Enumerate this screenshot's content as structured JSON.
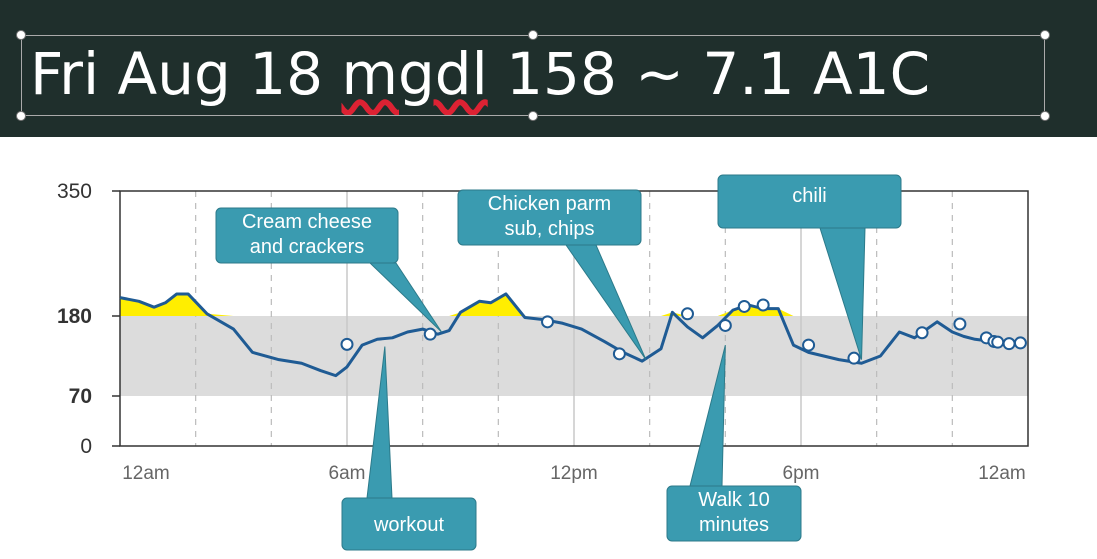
{
  "header": {
    "title_parts": [
      "Fri Aug 18 ",
      "mgdl",
      " 158 ~ 7.1 A1C"
    ]
  },
  "colors": {
    "header_bg": "#1f2f2c",
    "line": "#1f5b94",
    "high_fill": "#ffee00",
    "target_band": "#dcdcdc",
    "callout": "#3a9bb0"
  },
  "chart_data": {
    "type": "line",
    "y_ticks": [
      "350",
      "180",
      "70",
      "0"
    ],
    "x_ticks": [
      "12am",
      "6am",
      "12pm",
      "6pm",
      "12am"
    ],
    "ylim": [
      0,
      350
    ],
    "xlim": [
      0,
      24
    ],
    "target_range": [
      70,
      180
    ],
    "high_threshold": 180,
    "grid": "dashed vertical every 2 hours",
    "series": [
      {
        "x": [
          0,
          0.5,
          0.9,
          1.2,
          1.5,
          1.8,
          2.3,
          3.0,
          3.5,
          4.2,
          4.8,
          5.3,
          5.7,
          6.0,
          6.4,
          6.8,
          7.2,
          7.6,
          8.0,
          8.4,
          8.7,
          9.0,
          9.5,
          9.8,
          10.2,
          10.7,
          11.2,
          11.7,
          12.2,
          12.8,
          13.3,
          13.8,
          14.3,
          14.6,
          15.0,
          15.4,
          15.8,
          16.2,
          16.6,
          17.0,
          17.4,
          17.8,
          18.2,
          18.6,
          19.0,
          19.6,
          20.1,
          20.6,
          21.0,
          21.6,
          22.0,
          22.3,
          22.6,
          22.9
        ],
        "y": [
          205,
          200,
          192,
          198,
          210,
          210,
          183,
          162,
          130,
          120,
          115,
          105,
          98,
          110,
          140,
          148,
          150,
          158,
          162,
          155,
          160,
          185,
          200,
          198,
          210,
          178,
          175,
          170,
          162,
          145,
          130,
          118,
          135,
          185,
          165,
          150,
          167,
          188,
          195,
          190,
          190,
          140,
          130,
          125,
          120,
          115,
          125,
          158,
          150,
          172,
          158,
          152,
          148,
          146
        ]
      }
    ],
    "markers": [
      [
        6.0,
        141
      ],
      [
        8.2,
        155
      ],
      [
        11.3,
        172
      ],
      [
        13.2,
        128
      ],
      [
        15.0,
        183
      ],
      [
        16.0,
        167
      ],
      [
        16.5,
        193
      ],
      [
        17.0,
        195
      ],
      [
        18.2,
        140
      ],
      [
        19.4,
        122
      ],
      [
        21.2,
        157
      ],
      [
        22.2,
        169
      ],
      [
        22.9,
        150
      ],
      [
        23.1,
        145
      ],
      [
        23.2,
        144
      ],
      [
        23.5,
        142
      ],
      [
        23.8,
        143
      ]
    ],
    "callouts": [
      {
        "lines": [
          "Cream cheese",
          "and crackers"
        ],
        "x": 8.5,
        "y": 158
      },
      {
        "lines": [
          "workout"
        ],
        "x": 7.0,
        "y": 138
      },
      {
        "lines": [
          "Chicken parm",
          "sub, chips"
        ],
        "x": 13.9,
        "y": 120
      },
      {
        "lines": [
          "Walk 10",
          "minutes"
        ],
        "x": 16.0,
        "y": 140
      },
      {
        "lines": [
          "chili"
        ],
        "x": 19.6,
        "y": 120
      }
    ]
  }
}
